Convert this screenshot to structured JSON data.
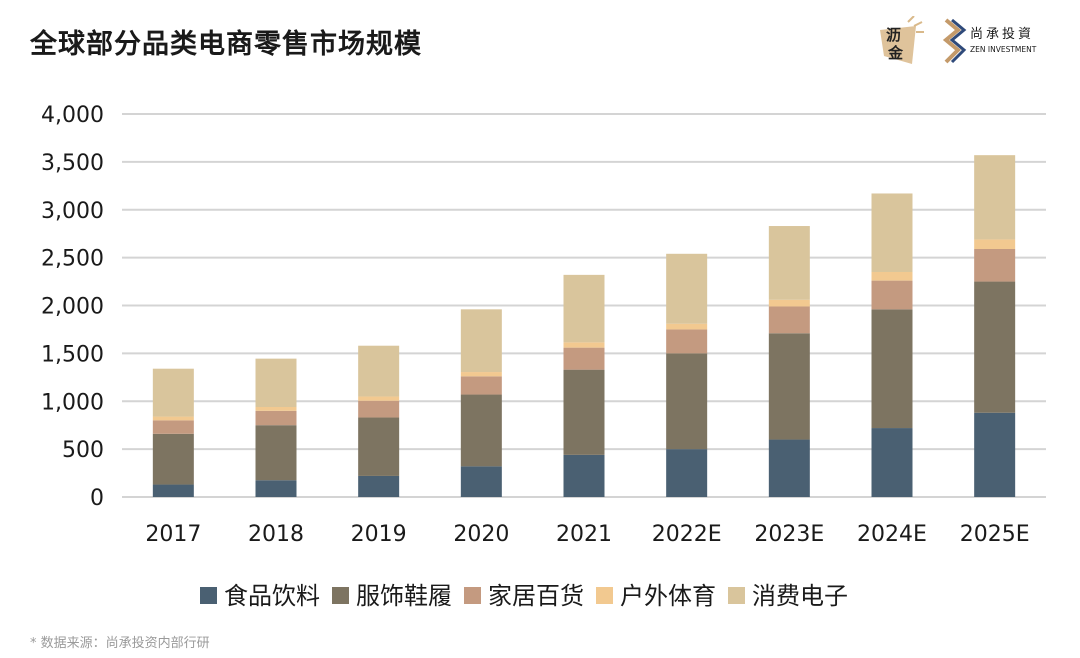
{
  "title": "全球部分品类电商零售市场规模",
  "logos": {
    "left_line1": "沥",
    "left_line2": "金",
    "brand_name": "尚承投資",
    "brand_sub": "ZEN INVESTMENT"
  },
  "source": "* 数据来源：尚承投资内部行研",
  "chart_data": {
    "type": "bar",
    "stacked": true,
    "categories": [
      "2017",
      "2018",
      "2019",
      "2020",
      "2021",
      "2022E",
      "2023E",
      "2024E",
      "2025E"
    ],
    "series": [
      {
        "name": "食品饮料",
        "color": "#4a6072",
        "values": [
          130,
          175,
          220,
          320,
          440,
          500,
          600,
          720,
          880
        ]
      },
      {
        "name": "服饰鞋履",
        "color": "#7d7461",
        "values": [
          530,
          575,
          610,
          750,
          890,
          1000,
          1110,
          1240,
          1370
        ]
      },
      {
        "name": "家居百货",
        "color": "#c49a80",
        "values": [
          140,
          150,
          175,
          190,
          230,
          250,
          280,
          300,
          340
        ]
      },
      {
        "name": "户外体育",
        "color": "#f2c990",
        "values": [
          40,
          40,
          45,
          45,
          55,
          60,
          70,
          90,
          100
        ]
      },
      {
        "name": "消费电子",
        "color": "#d9c59c",
        "values": [
          500,
          505,
          530,
          655,
          705,
          730,
          770,
          820,
          880
        ]
      }
    ],
    "ylim": [
      0,
      4000
    ],
    "yticks": [
      "0",
      "500",
      "1,000",
      "1,500",
      "2,000",
      "2,500",
      "3,000",
      "3,500",
      "4,000"
    ],
    "grid": true,
    "legend": "bottom"
  }
}
